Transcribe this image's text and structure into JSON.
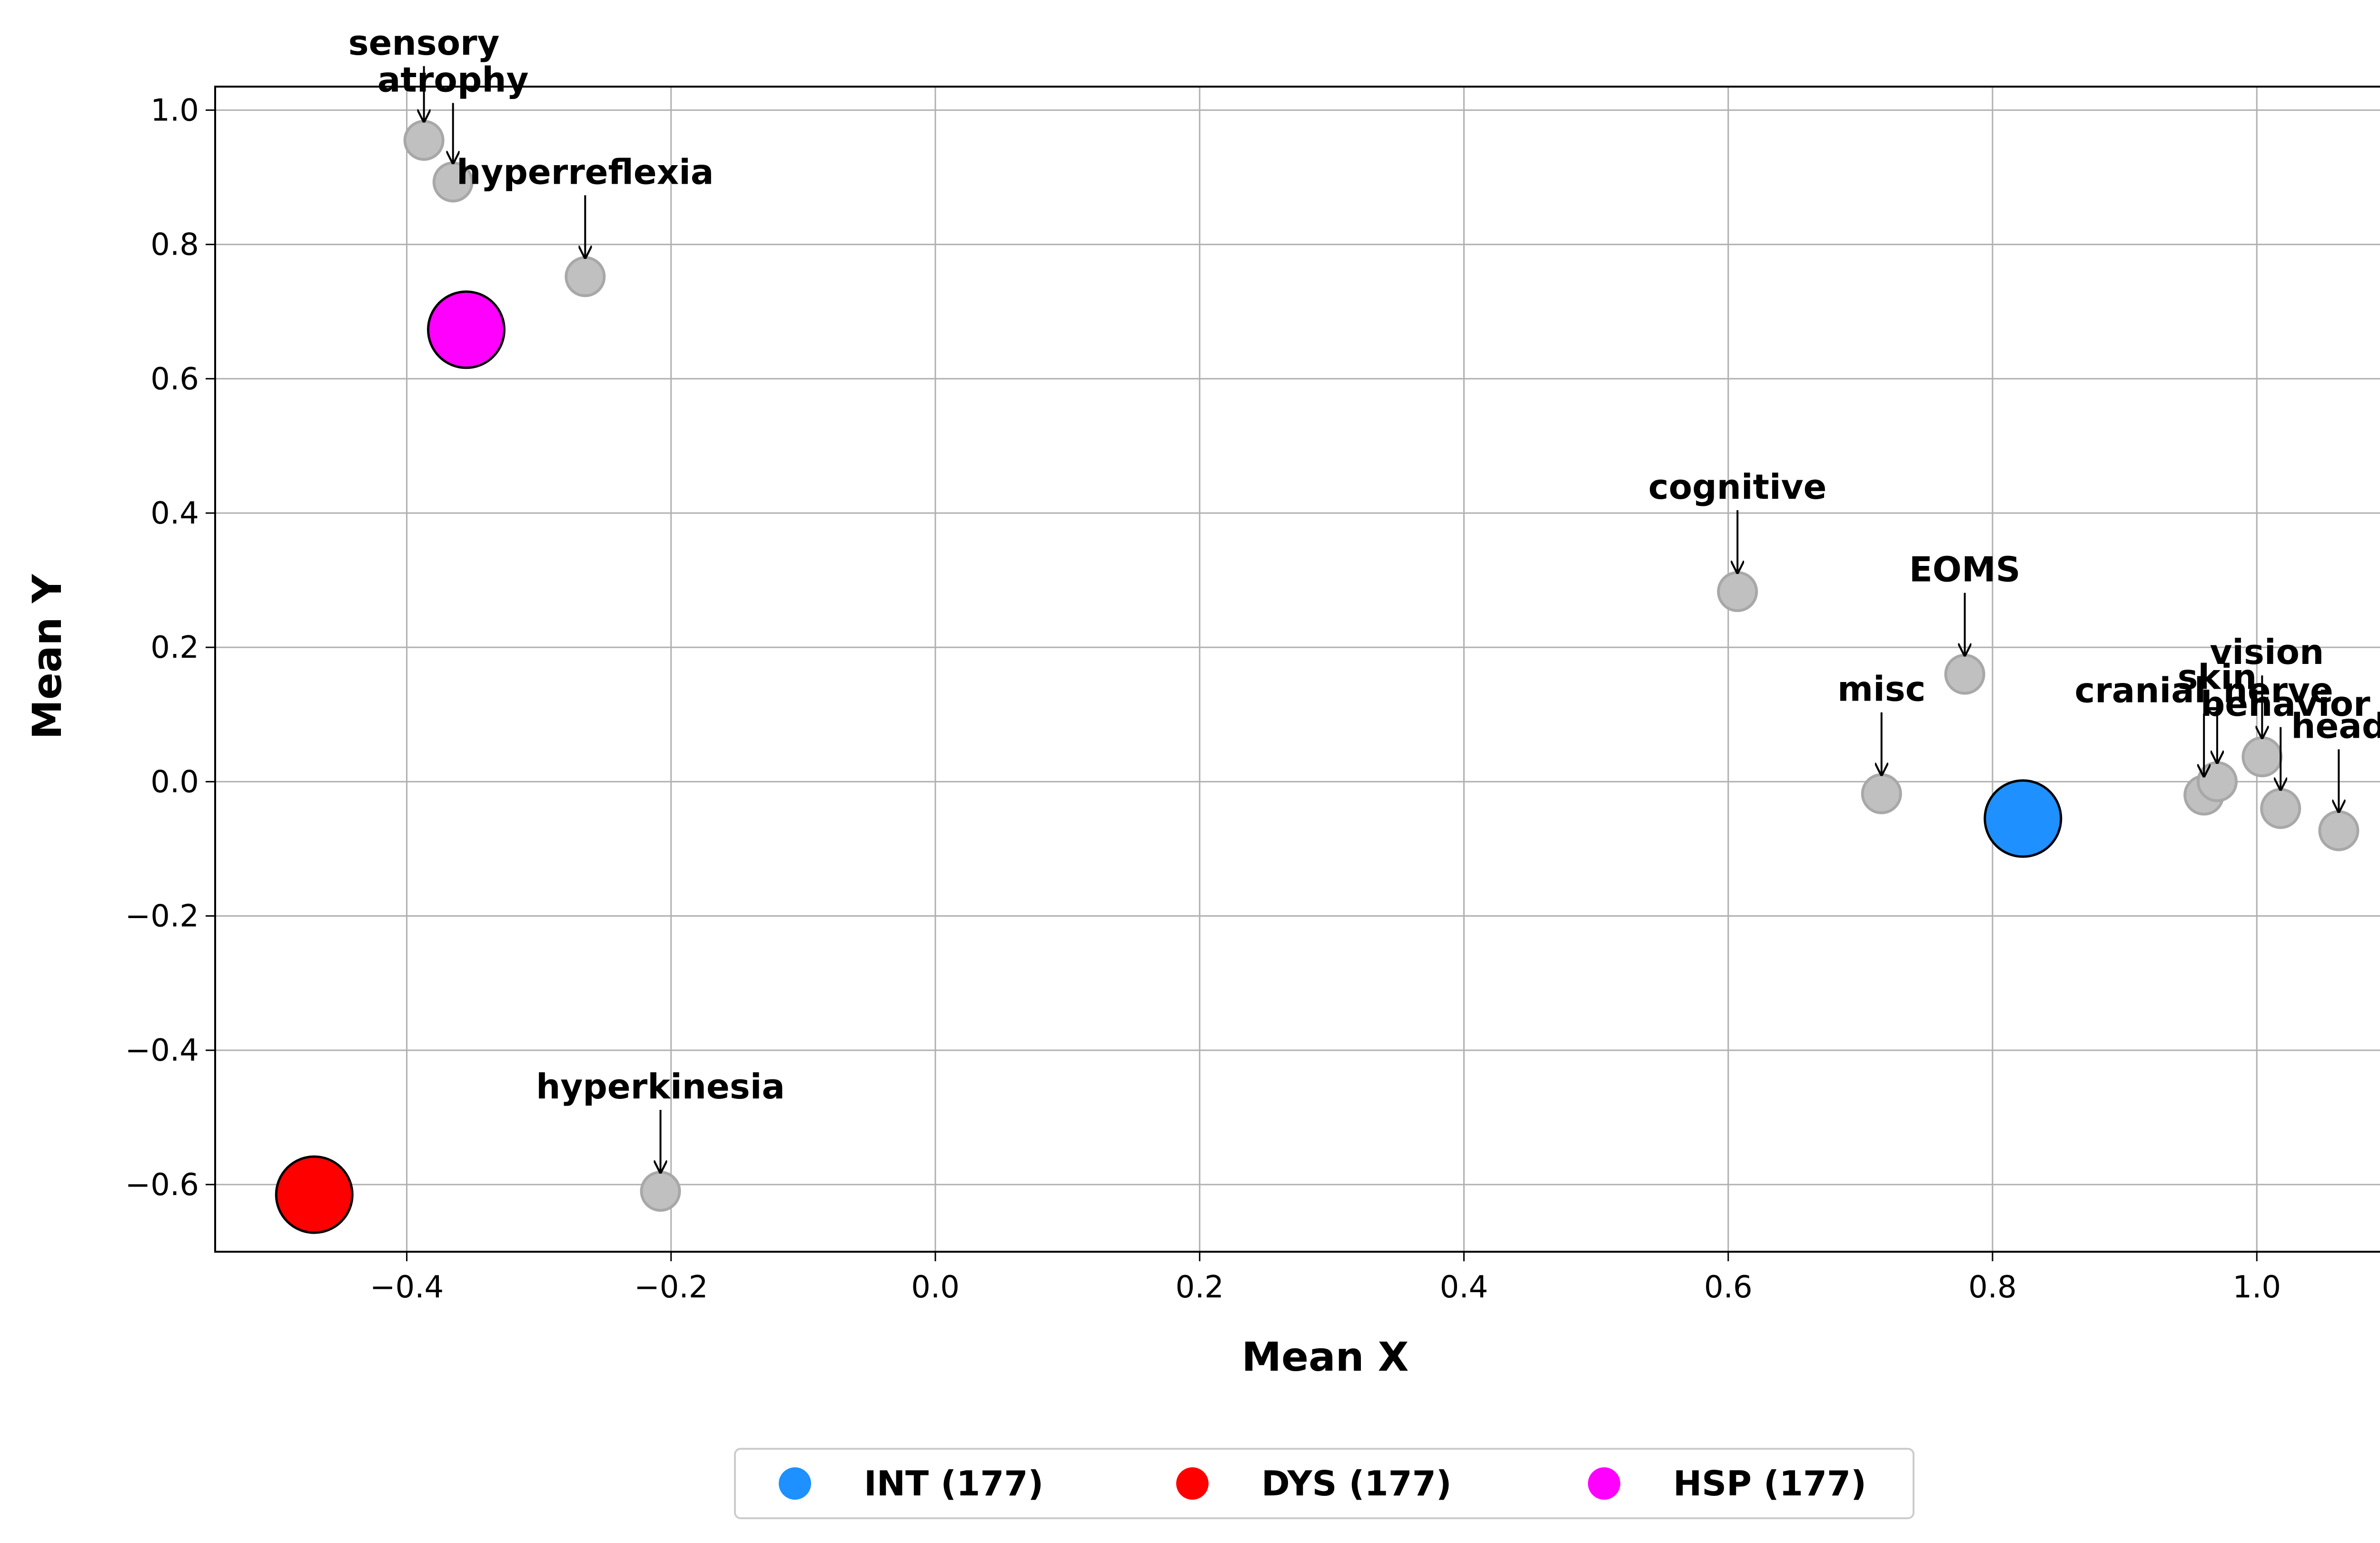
{
  "chart_data": {
    "type": "scatter",
    "xlabel": "Mean X",
    "ylabel": "Mean Y",
    "xlim": [
      -0.545,
      1.135
    ],
    "ylim": [
      -0.7,
      1.035
    ],
    "xticks": [
      -0.4,
      -0.2,
      0.0,
      0.2,
      0.4,
      0.6,
      0.8,
      1.0
    ],
    "yticks": [
      -0.6,
      -0.4,
      -0.2,
      0.0,
      0.2,
      0.4,
      0.6,
      0.8,
      1.0
    ],
    "grid": true,
    "legend_position": "bottom-center",
    "feature_points": [
      {
        "label": "sensory",
        "x": -0.387,
        "y": 0.955
      },
      {
        "label": "atrophy",
        "x": -0.365,
        "y": 0.893
      },
      {
        "label": "hyperreflexia",
        "x": -0.265,
        "y": 0.752
      },
      {
        "label": "hyperkinesia",
        "x": -0.208,
        "y": -0.61
      },
      {
        "label": "cognitive",
        "x": 0.607,
        "y": 0.283
      },
      {
        "label": "EOMS",
        "x": 0.779,
        "y": 0.16
      },
      {
        "label": "misc",
        "x": 0.716,
        "y": -0.018
      },
      {
        "label": "cranial_nerve",
        "x": 0.96,
        "y": -0.02
      },
      {
        "label": "skin",
        "x": 0.97,
        "y": 0.0
      },
      {
        "label": "vision",
        "x": 1.004,
        "y": 0.037
      },
      {
        "label": "behavior",
        "x": 1.018,
        "y": -0.04
      },
      {
        "label": "head",
        "x": 1.062,
        "y": -0.073
      }
    ],
    "series": [
      {
        "name": "INT (177)",
        "x": 0.823,
        "y": -0.055,
        "color": "#1e90ff"
      },
      {
        "name": "DYS (177)",
        "x": -0.47,
        "y": -0.615,
        "color": "#ff0000"
      },
      {
        "name": "HSP (177)",
        "x": -0.355,
        "y": 0.673,
        "color": "#ff00ff"
      }
    ]
  },
  "labels": {
    "x_title": "Mean X",
    "y_title": "Mean Y",
    "tick_texts_x": [
      "−0.4",
      "−0.2",
      "0.0",
      "0.2",
      "0.4",
      "0.6",
      "0.8",
      "1.0"
    ],
    "tick_texts_y": [
      "−0.6",
      "−0.4",
      "−0.2",
      "0.0",
      "0.2",
      "0.4",
      "0.6",
      "0.8",
      "1.0"
    ]
  },
  "colors": {
    "feature_fill": "#c0c0c0",
    "feature_stroke": "#a8a8a8",
    "grid": "#b0b0b0"
  }
}
